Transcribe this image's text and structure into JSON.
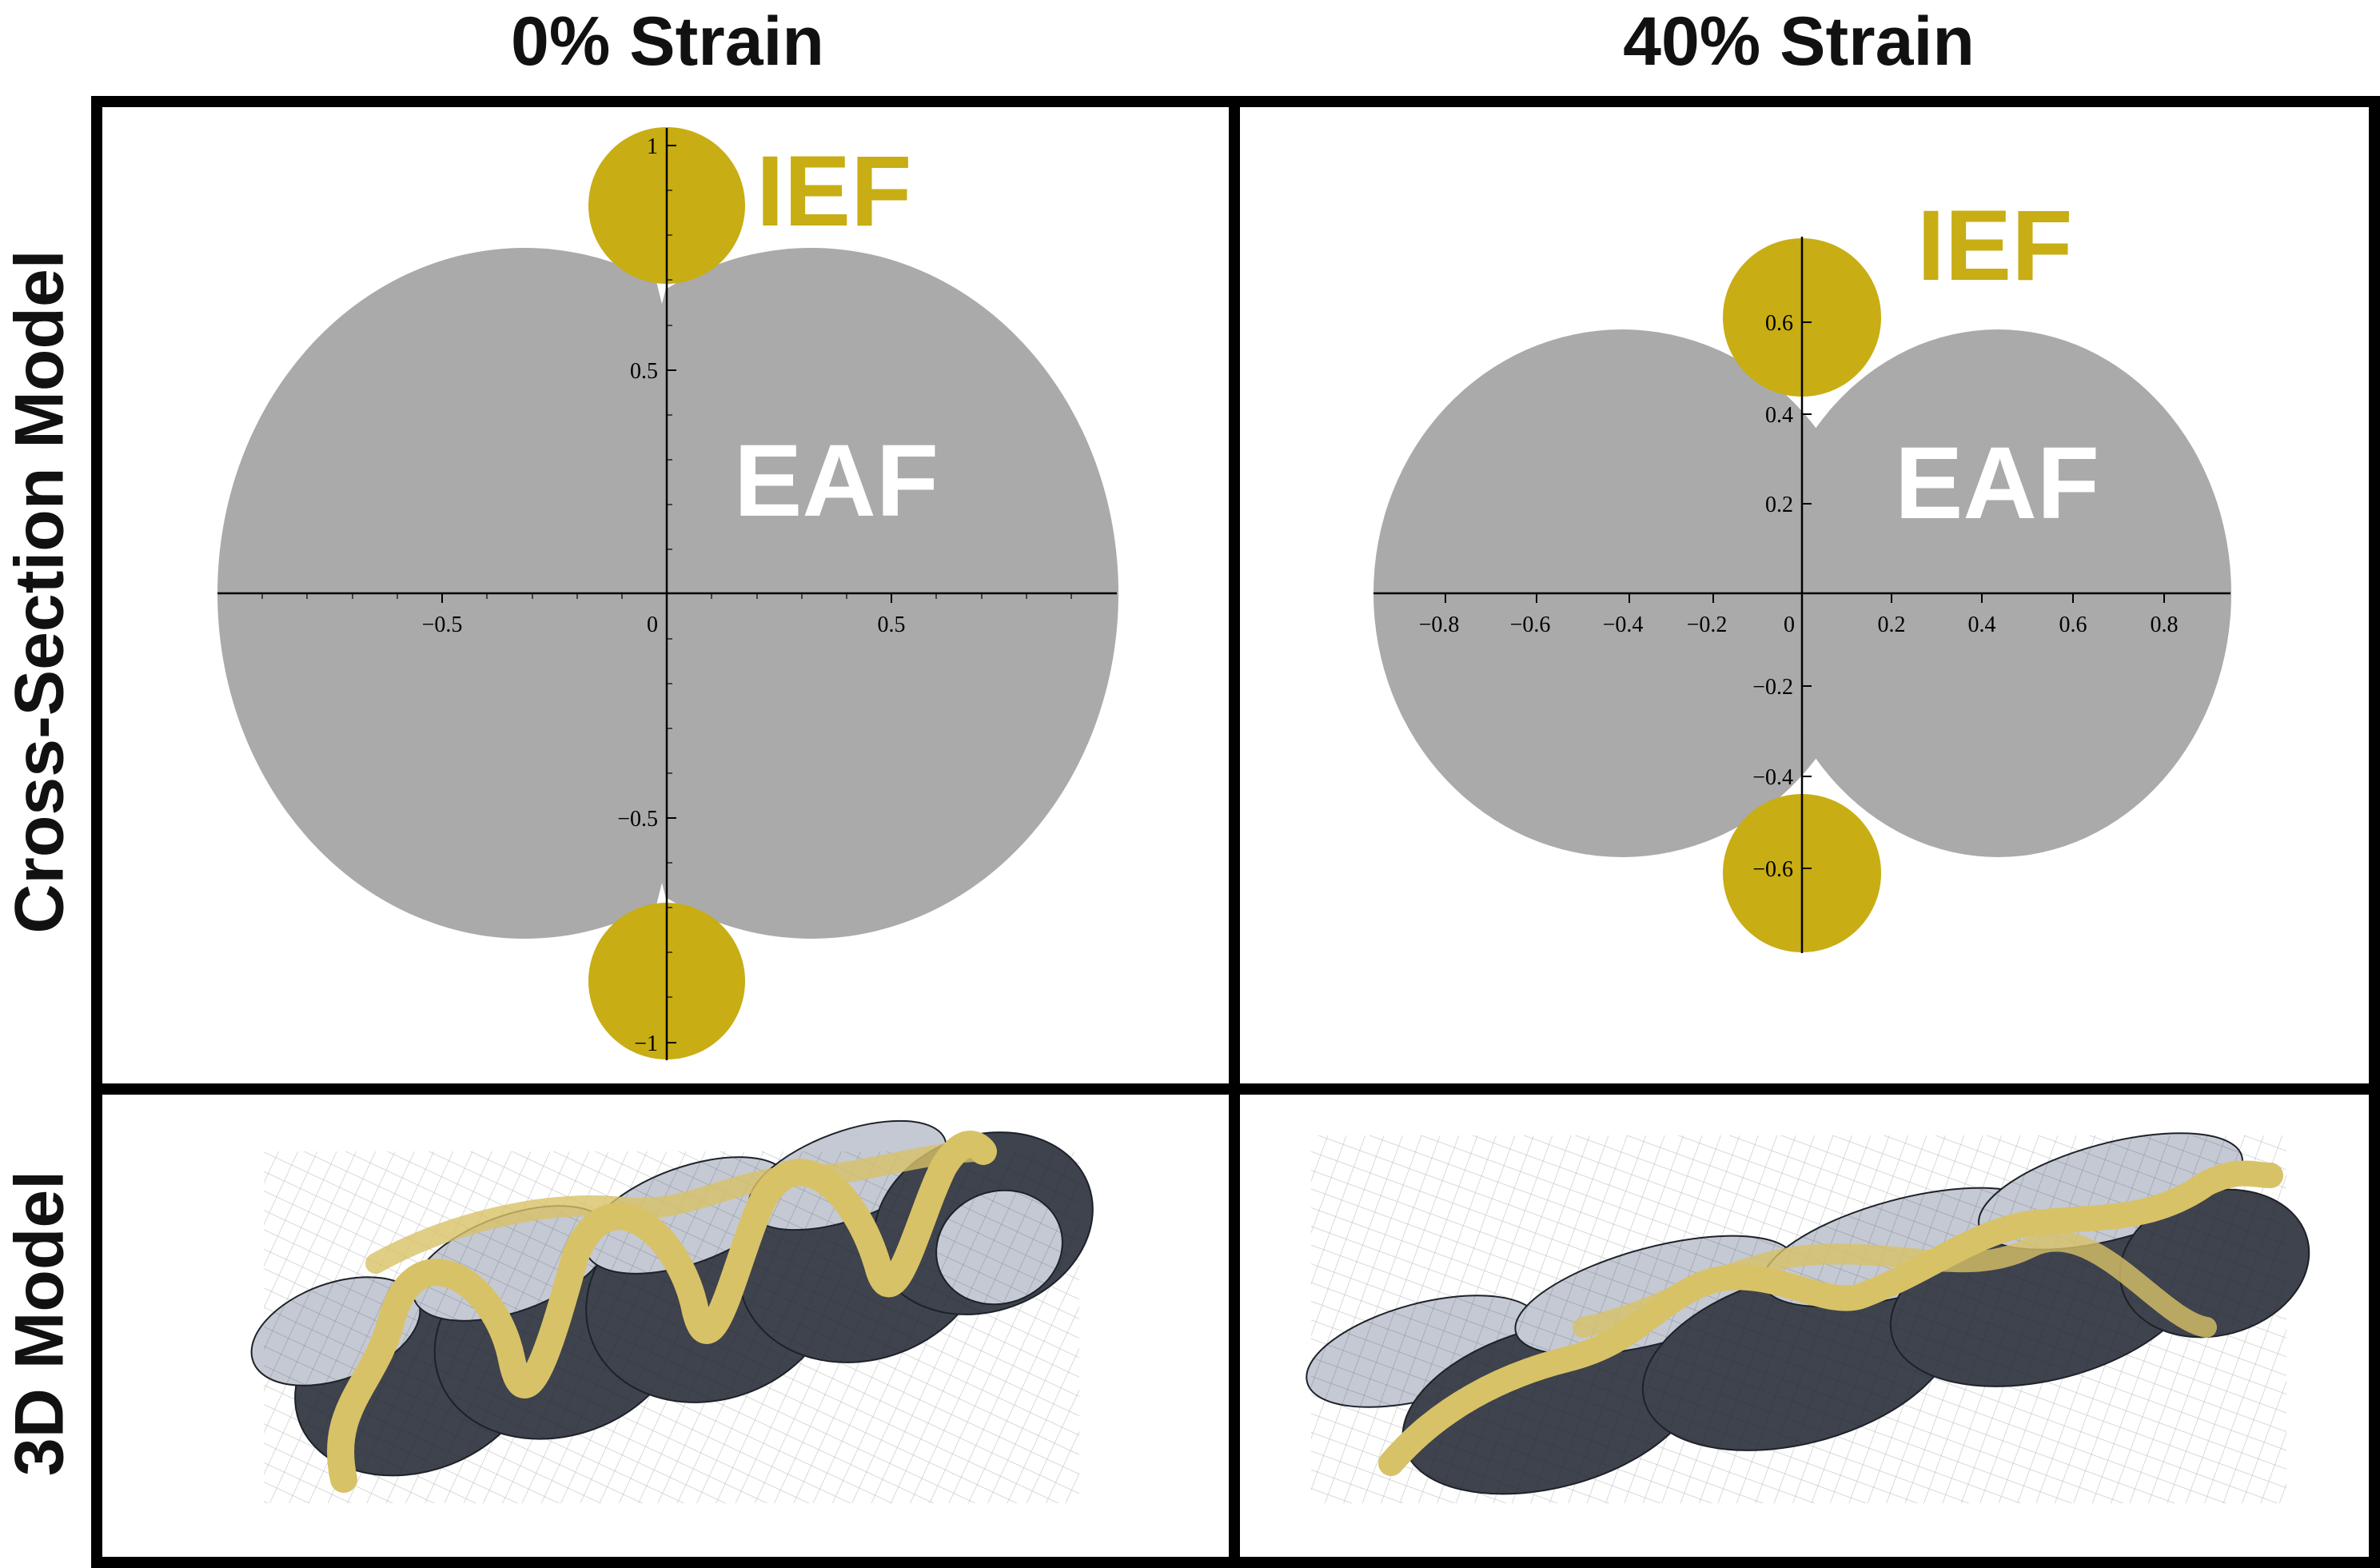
{
  "columns": [
    "0% Strain",
    "40% Strain"
  ],
  "rows": [
    "Cross-Section Model",
    "3D Model"
  ],
  "cross_sections": [
    {
      "ief_label": "IEF",
      "eaf_label": "EAF",
      "x_ticks": [
        "−0.5",
        "0",
        "0.5"
      ],
      "y_ticks": [
        "1",
        "0.5",
        "−0.5",
        "−1"
      ]
    },
    {
      "ief_label": "IEF",
      "eaf_label": "EAF",
      "x_ticks": [
        "−0.8",
        "−0.6",
        "−0.4",
        "−0.2",
        "0",
        "0.2",
        "0.4",
        "0.6",
        "0.8"
      ],
      "y_ticks": [
        "0.6",
        "0.4",
        "0.2",
        "−0.2",
        "−0.4",
        "−0.6"
      ]
    }
  ],
  "colors": {
    "eaf": "#aaaaaa",
    "ief": "#c8ad14",
    "ief_3d": "#d8c267",
    "eaf_3d_dark": "#3e434d",
    "eaf_3d_light": "#c4c9d3",
    "frame": "#000000"
  }
}
